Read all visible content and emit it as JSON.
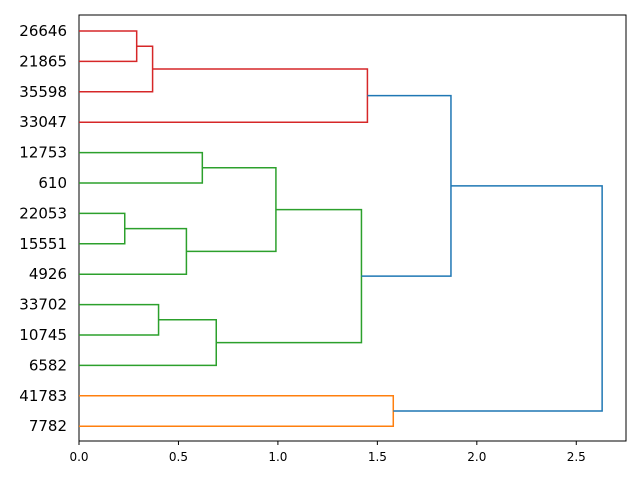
{
  "chart_data": {
    "type": "dendrogram",
    "orientation": "horizontal",
    "title": "",
    "xlabel": "",
    "ylabel": "",
    "xlim": [
      0,
      2.75
    ],
    "xticks": [
      {
        "value": 0.0,
        "label": "0.0"
      },
      {
        "value": 0.5,
        "label": "0.5"
      },
      {
        "value": 1.0,
        "label": "1.0"
      },
      {
        "value": 1.5,
        "label": "1.5"
      },
      {
        "value": 2.0,
        "label": "2.0"
      },
      {
        "value": 2.5,
        "label": "2.5"
      }
    ],
    "leaves": [
      "26646",
      "21865",
      "35598",
      "33047",
      "12753",
      "610",
      "22053",
      "15551",
      "4926",
      "33702",
      "10745",
      "6582",
      "41783",
      "7782"
    ],
    "colors": {
      "red": "#d62728",
      "green": "#2ca02c",
      "orange": "#ff7f0e",
      "blue": "#1f77b4"
    },
    "merges": [
      {
        "id": "n0",
        "children": [
          "26646",
          "21865"
        ],
        "height": 0.29,
        "color": "red"
      },
      {
        "id": "n1",
        "children": [
          "n0",
          "35598"
        ],
        "height": 0.37,
        "color": "red"
      },
      {
        "id": "n2",
        "children": [
          "n1",
          "33047"
        ],
        "height": 1.45,
        "color": "red"
      },
      {
        "id": "n3",
        "children": [
          "12753",
          "610"
        ],
        "height": 0.62,
        "color": "green"
      },
      {
        "id": "n4",
        "children": [
          "22053",
          "15551"
        ],
        "height": 0.23,
        "color": "green"
      },
      {
        "id": "n5",
        "children": [
          "n4",
          "4926"
        ],
        "height": 0.54,
        "color": "green"
      },
      {
        "id": "n6",
        "children": [
          "n3",
          "n5"
        ],
        "height": 0.99,
        "color": "green"
      },
      {
        "id": "n7",
        "children": [
          "33702",
          "10745"
        ],
        "height": 0.4,
        "color": "green"
      },
      {
        "id": "n8",
        "children": [
          "n7",
          "6582"
        ],
        "height": 0.69,
        "color": "green"
      },
      {
        "id": "n9",
        "children": [
          "n6",
          "n8"
        ],
        "height": 1.42,
        "color": "green"
      },
      {
        "id": "n10",
        "children": [
          "n2",
          "n9"
        ],
        "height": 1.87,
        "color": "blue"
      },
      {
        "id": "n11",
        "children": [
          "41783",
          "7782"
        ],
        "height": 1.58,
        "color": "orange"
      },
      {
        "id": "n12",
        "children": [
          "n10",
          "n11"
        ],
        "height": 2.63,
        "color": "blue"
      }
    ]
  }
}
